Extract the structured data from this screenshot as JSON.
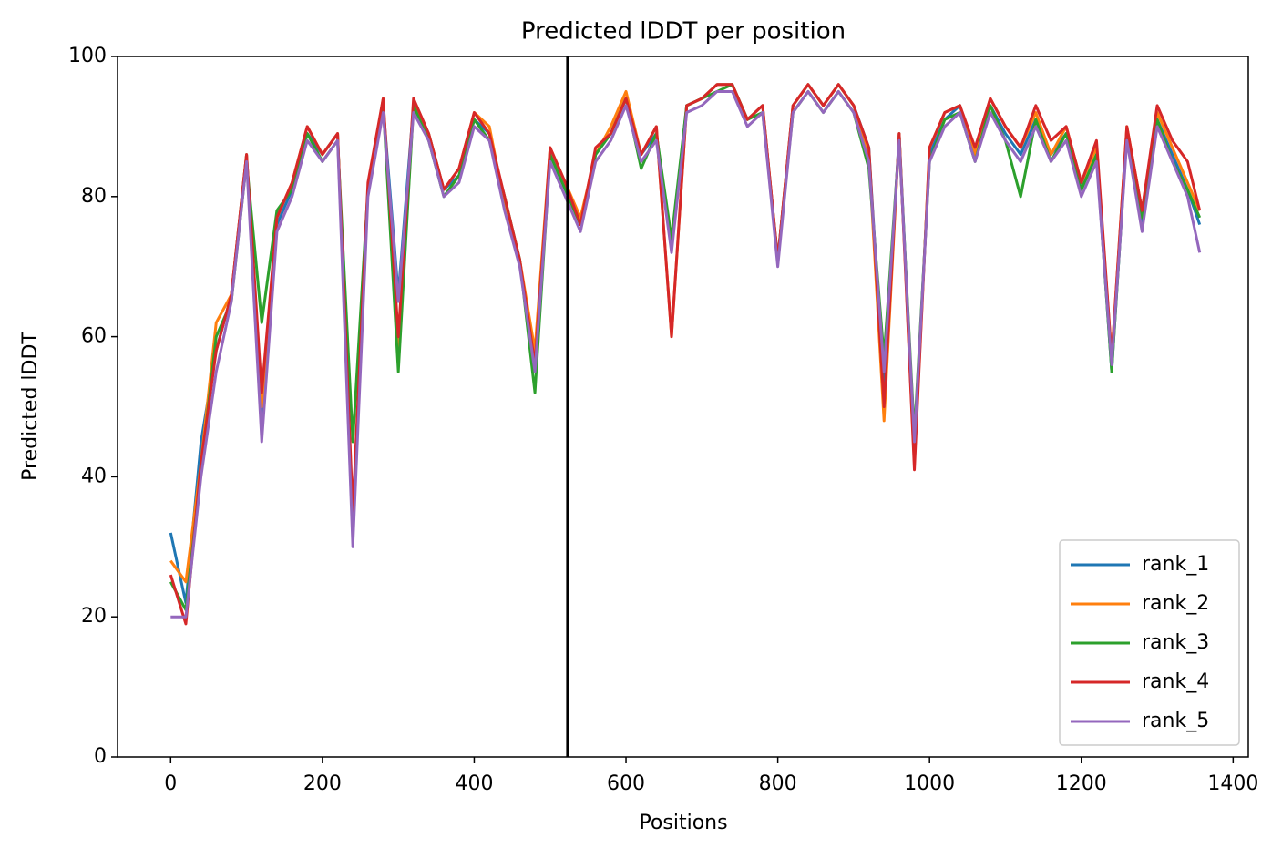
{
  "chart_data": {
    "type": "line",
    "title": "Predicted lDDT per position",
    "xlabel": "Positions",
    "ylabel": "Predicted lDDT",
    "x": [
      0,
      20,
      40,
      60,
      80,
      100,
      120,
      140,
      160,
      180,
      200,
      220,
      240,
      260,
      280,
      300,
      320,
      340,
      360,
      380,
      400,
      420,
      440,
      460,
      480,
      500,
      520,
      540,
      560,
      580,
      600,
      620,
      640,
      660,
      680,
      700,
      720,
      740,
      760,
      780,
      800,
      820,
      840,
      860,
      880,
      900,
      920,
      940,
      960,
      980,
      1000,
      1020,
      1040,
      1060,
      1080,
      1100,
      1120,
      1140,
      1160,
      1180,
      1200,
      1220,
      1240,
      1260,
      1280,
      1300,
      1320,
      1340,
      1356
    ],
    "series": [
      {
        "name": "rank_1",
        "color": "#1f77b4",
        "values": [
          32,
          22,
          45,
          58,
          66,
          86,
          48,
          76,
          81,
          89,
          86,
          89,
          32,
          81,
          93,
          66,
          93,
          89,
          81,
          83,
          91,
          89,
          79,
          71,
          56,
          86,
          81,
          76,
          86,
          89,
          94,
          86,
          89,
          73,
          93,
          94,
          96,
          96,
          91,
          93,
          71,
          93,
          96,
          93,
          96,
          93,
          87,
          52,
          89,
          44,
          86,
          91,
          93,
          86,
          93,
          89,
          86,
          91,
          86,
          89,
          81,
          86,
          55,
          89,
          76,
          91,
          86,
          81,
          76
        ]
      },
      {
        "name": "rank_2",
        "color": "#ff7f0e",
        "values": [
          28,
          25,
          42,
          62,
          66,
          86,
          50,
          77,
          82,
          90,
          86,
          89,
          33,
          81,
          94,
          57,
          93,
          89,
          81,
          84,
          92,
          90,
          79,
          71,
          58,
          87,
          82,
          77,
          86,
          90,
          95,
          86,
          90,
          60,
          93,
          94,
          96,
          96,
          91,
          93,
          71,
          93,
          96,
          93,
          96,
          93,
          86,
          48,
          89,
          42,
          87,
          92,
          93,
          86,
          94,
          90,
          87,
          92,
          86,
          90,
          82,
          87,
          57,
          90,
          78,
          92,
          87,
          82,
          78
        ]
      },
      {
        "name": "rank_3",
        "color": "#2ca02c",
        "values": [
          25,
          21,
          41,
          60,
          65,
          85,
          62,
          78,
          81,
          89,
          85,
          88,
          45,
          81,
          93,
          55,
          93,
          88,
          80,
          83,
          91,
          88,
          80,
          71,
          52,
          86,
          81,
          76,
          86,
          89,
          94,
          84,
          89,
          74,
          93,
          94,
          95,
          96,
          91,
          92,
          71,
          92,
          95,
          92,
          95,
          92,
          84,
          57,
          88,
          46,
          85,
          91,
          92,
          85,
          93,
          88,
          80,
          91,
          85,
          89,
          81,
          86,
          55,
          89,
          77,
          91,
          85,
          81,
          77
        ]
      },
      {
        "name": "rank_4",
        "color": "#d62728",
        "values": [
          26,
          19,
          42,
          58,
          66,
          86,
          52,
          77,
          82,
          90,
          86,
          89,
          35,
          82,
          94,
          60,
          94,
          89,
          81,
          84,
          92,
          89,
          80,
          71,
          56,
          87,
          82,
          76,
          87,
          89,
          94,
          86,
          90,
          60,
          93,
          94,
          96,
          96,
          91,
          93,
          71,
          93,
          96,
          93,
          96,
          93,
          87,
          50,
          89,
          41,
          87,
          92,
          93,
          87,
          94,
          90,
          87,
          93,
          88,
          90,
          82,
          88,
          57,
          90,
          78,
          93,
          88,
          85,
          78
        ]
      },
      {
        "name": "rank_5",
        "color": "#9467bd",
        "values": [
          20,
          20,
          40,
          55,
          65,
          85,
          45,
          75,
          80,
          88,
          85,
          88,
          30,
          80,
          92,
          65,
          92,
          88,
          80,
          82,
          90,
          88,
          78,
          70,
          55,
          85,
          80,
          75,
          85,
          88,
          93,
          85,
          88,
          72,
          92,
          93,
          95,
          95,
          90,
          92,
          70,
          92,
          95,
          92,
          95,
          92,
          85,
          55,
          88,
          45,
          85,
          90,
          92,
          85,
          92,
          88,
          85,
          90,
          85,
          88,
          80,
          85,
          56,
          88,
          75,
          90,
          85,
          80,
          72
        ]
      }
    ],
    "vline": 523,
    "xlim": [
      -70,
      1420
    ],
    "ylim": [
      0,
      100
    ],
    "xticks": [
      0,
      200,
      400,
      600,
      800,
      1000,
      1200,
      1400
    ],
    "yticks": [
      0,
      20,
      40,
      60,
      80,
      100
    ],
    "legend": "lower right"
  }
}
